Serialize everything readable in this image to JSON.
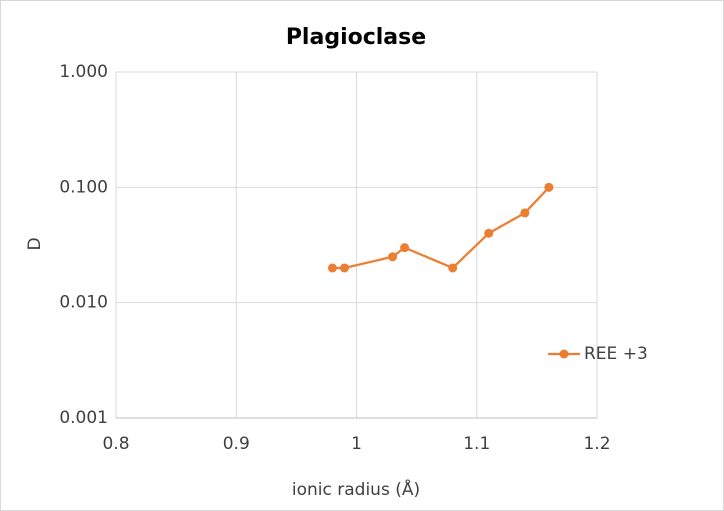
{
  "chart_data": {
    "type": "line",
    "title": "Plagioclase",
    "x_label": "ionic radius (Å)",
    "y_label": "D",
    "x": [
      0.98,
      0.99,
      1.03,
      1.04,
      1.08,
      1.11,
      1.14,
      1.16
    ],
    "series": [
      {
        "name": "REE +3",
        "color": "#ed7d31",
        "values": [
          0.02,
          0.02,
          0.025,
          0.03,
          0.02,
          0.04,
          0.06,
          0.1
        ]
      }
    ],
    "xlim": [
      0.8,
      1.2
    ],
    "xticks": [
      0.8,
      0.9,
      1,
      1.1,
      1.2
    ],
    "ylim": [
      0.001,
      1
    ],
    "yscale": "log",
    "yticks": [
      {
        "value": 0.001,
        "label": "0.001"
      },
      {
        "value": 0.01,
        "label": "0.010"
      },
      {
        "value": 0.1,
        "label": "0.100"
      },
      {
        "value": 1,
        "label": "1.000"
      }
    ],
    "grid": true,
    "legend": "right"
  }
}
